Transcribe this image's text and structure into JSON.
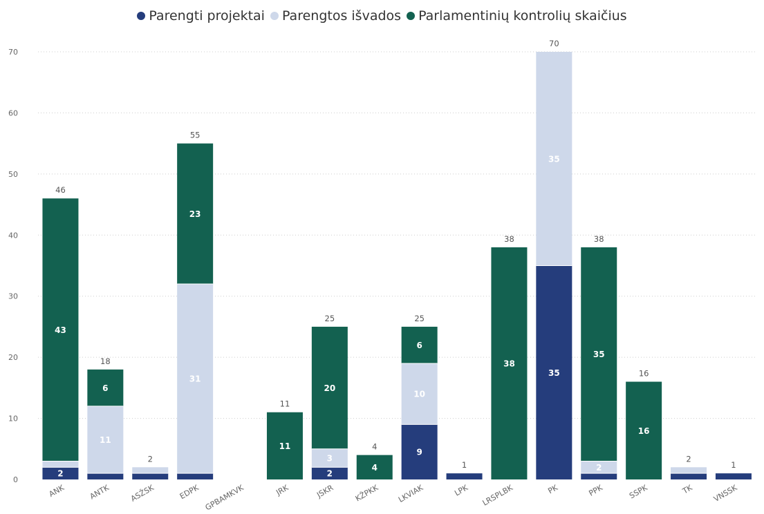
{
  "chart_data": {
    "type": "bar",
    "stacked": true,
    "title": "",
    "xlabel": "",
    "ylabel": "",
    "ylim": [
      0,
      70
    ],
    "yticks": [
      0,
      10,
      20,
      30,
      40,
      50,
      60,
      70
    ],
    "grid": true,
    "legend_position": "top-center",
    "categories": [
      "ANK",
      "ANTK",
      "ASŽSK",
      "EDPK",
      "GPBAMKVK",
      "JRK",
      "JSKR",
      "KŽPKK",
      "LKVIAK",
      "LPK",
      "LRSPLBK",
      "PK",
      "PPK",
      "SSPK",
      "TK",
      "VNSSK"
    ],
    "series": [
      {
        "name": "Parengti projektai",
        "color": "#253d7c",
        "label_color": "#ffffff",
        "values": [
          2,
          1,
          1,
          1,
          0,
          0,
          2,
          0,
          9,
          1,
          0,
          35,
          1,
          0,
          1,
          1
        ]
      },
      {
        "name": "Parengtos išvados",
        "color": "#ced8ea",
        "label_color": "#ffffff",
        "values": [
          1,
          11,
          1,
          31,
          0,
          0,
          3,
          0,
          10,
          0,
          0,
          35,
          2,
          0,
          1,
          0
        ]
      },
      {
        "name": "Parlamentinių kontrolių skaičius",
        "color": "#136150",
        "label_color": "#ffffff",
        "values": [
          43,
          6,
          0,
          23,
          0,
          11,
          20,
          4,
          6,
          0,
          38,
          0,
          35,
          16,
          0,
          0
        ]
      }
    ],
    "totals": [
      46,
      18,
      2,
      55,
      0,
      11,
      25,
      4,
      25,
      1,
      38,
      70,
      38,
      16,
      2,
      1
    ],
    "shown_segment_labels": [
      [
        2,
        null,
        43
      ],
      [
        null,
        11,
        6
      ],
      [
        null,
        null,
        null
      ],
      [
        null,
        31,
        23
      ],
      [
        null,
        null,
        null
      ],
      [
        null,
        null,
        11
      ],
      [
        2,
        3,
        20
      ],
      [
        null,
        null,
        4
      ],
      [
        9,
        10,
        6
      ],
      [
        null,
        null,
        null
      ],
      [
        null,
        null,
        38
      ],
      [
        35,
        35,
        null
      ],
      [
        null,
        2,
        35
      ],
      [
        null,
        null,
        16
      ],
      [
        null,
        null,
        null
      ],
      [
        null,
        null,
        null
      ]
    ]
  }
}
